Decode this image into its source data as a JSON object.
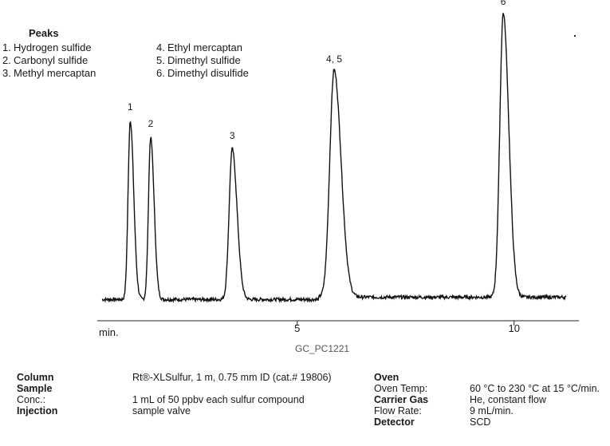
{
  "peaks_legend": {
    "title": "Peaks",
    "items": [
      {
        "num": "1.",
        "name": "Hydrogen sulfide"
      },
      {
        "num": "2.",
        "name": "Carbonyl sulfide"
      },
      {
        "num": "3.",
        "name": "Methyl mercaptan"
      },
      {
        "num": "4.",
        "name": "Ethyl mercaptan"
      },
      {
        "num": "5.",
        "name": "Dimethyl sulfide"
      },
      {
        "num": "6.",
        "name": "Dimethyl disulfide"
      }
    ]
  },
  "chart_data": {
    "type": "line",
    "xlabel": "min.",
    "xlim": [
      0.5,
      11.2
    ],
    "xticks": [
      {
        "value": 5,
        "label": "5"
      },
      {
        "value": 10,
        "label": "10"
      }
    ],
    "baseline": 0.03,
    "peaks": [
      {
        "label": "1",
        "x": 1.15,
        "height": 0.63,
        "width": 0.05
      },
      {
        "label": "2",
        "x": 1.62,
        "height": 0.57,
        "width": 0.05
      },
      {
        "label": "3",
        "x": 3.5,
        "height": 0.53,
        "width": 0.07
      },
      {
        "label": "4, 5",
        "x": 5.85,
        "height": 0.8,
        "width": 0.1
      },
      {
        "label": "6",
        "x": 9.75,
        "height": 1.0,
        "width": 0.08
      }
    ],
    "grid": false,
    "figure_id": "GC_PC1221"
  },
  "conditions": {
    "column_label": "Column",
    "column_value": "Rt®-XLSulfur, 1 m, 0.75 mm ID (cat.# 19806)",
    "sample_label": "Sample",
    "conc_label": "Conc.:",
    "conc_value": "1 mL of 50 ppbv each sulfur compound",
    "injection_label": "Injection",
    "injection_value": "sample valve",
    "oven_label": "Oven",
    "oven_temp_label": "Oven Temp:",
    "oven_temp_value": "60 °C to 230 °C at 15 °C/min.",
    "carrier_gas_label": "Carrier Gas",
    "carrier_gas_value": "He, constant flow",
    "flow_rate_label": "Flow Rate:",
    "flow_rate_value": "9 mL/min.",
    "detector_label": "Detector",
    "detector_value": "SCD"
  }
}
